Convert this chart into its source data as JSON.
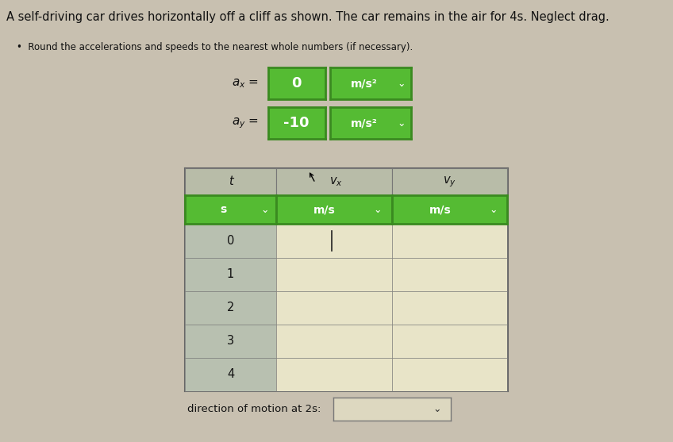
{
  "title": "A self-driving car drives horizontally off a cliff as shown. The car remains in the air for 4s. Neglect drag.",
  "bullet": "Round the accelerations and speeds to the nearest whole numbers (if necessary).",
  "ax_value": "0",
  "ay_value": "-10",
  "units_ms2": "m/s²",
  "bg_color": "#c8c0b0",
  "green_color": "#55bb33",
  "green_dark": "#3a8a20",
  "table_t_bg": "#b8c0b0",
  "table_input_bg": "#e8e4c8",
  "table_border": "#777777",
  "header_bg": "#b8bca8",
  "t_unit": "s",
  "v_unit": "m/s",
  "time_values": [
    "0",
    "1",
    "2",
    "3",
    "4"
  ],
  "direction_label": "direction of motion at 2s:",
  "text_color": "#111111",
  "white": "#ffffff",
  "dir_box_bg": "#ddd8c0"
}
